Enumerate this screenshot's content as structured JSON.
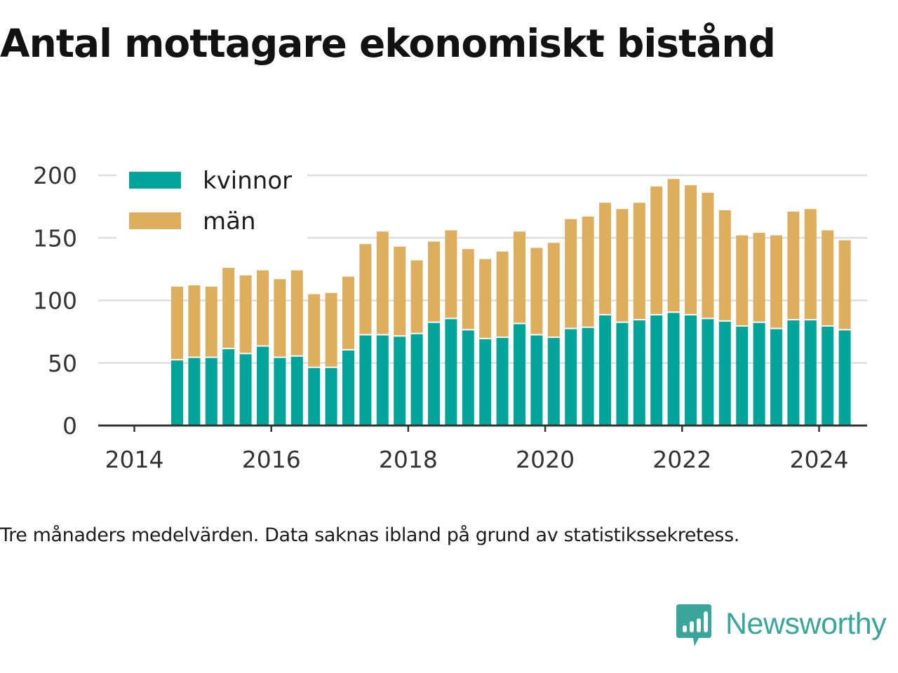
{
  "title": "Antal mottagare ekonomiskt bistånd",
  "note": "Tre månaders medelvärden. Data saknas ibland på grund av statistikssekretess.",
  "brand": {
    "name": "Newsworthy",
    "icon": "newsworthy-logo-icon",
    "color": "#3aa59a"
  },
  "colors": {
    "kvinnor": "#00a499",
    "man": "#dcae5e",
    "grid": "#dddddd",
    "axis": "#333333"
  },
  "chart_data": {
    "type": "bar",
    "stacked": true,
    "xlabel": "",
    "ylabel": "",
    "ylim": [
      0,
      200
    ],
    "yticks": [
      0,
      50,
      100,
      150,
      200
    ],
    "xticks": [
      "2014",
      "2016",
      "2018",
      "2020",
      "2022",
      "2024"
    ],
    "grid": true,
    "legend_position": "top-left",
    "categories": [
      "2014-Q2",
      "2014-Q3",
      "2014-Q4",
      "2015-Q1",
      "2015-Q2",
      "2015-Q3",
      "2015-Q4",
      "2016-Q1",
      "2016-Q2",
      "2016-Q3",
      "2016-Q4",
      "2017-Q1",
      "2017-Q2",
      "2017-Q3",
      "2017-Q4",
      "2018-Q1",
      "2018-Q2",
      "2018-Q3",
      "2018-Q4",
      "2019-Q1",
      "2019-Q2",
      "2019-Q3",
      "2019-Q4",
      "2020-Q1",
      "2020-Q2",
      "2020-Q3",
      "2020-Q4",
      "2021-Q1",
      "2021-Q2",
      "2021-Q3",
      "2021-Q4",
      "2022-Q1",
      "2022-Q2",
      "2022-Q3",
      "2022-Q4",
      "2023-Q1",
      "2023-Q2",
      "2023-Q3",
      "2023-Q4",
      "2024-Q1"
    ],
    "series": [
      {
        "name": "kvinnor",
        "values": [
          52,
          54,
          54,
          61,
          57,
          63,
          54,
          55,
          46,
          46,
          60,
          72,
          72,
          71,
          73,
          82,
          85,
          76,
          69,
          70,
          81,
          72,
          70,
          77,
          78,
          88,
          82,
          84,
          88,
          90,
          88,
          85,
          83,
          79,
          82,
          77,
          84,
          84,
          79,
          76
        ]
      },
      {
        "name": "män",
        "values": [
          59,
          58,
          57,
          65,
          63,
          61,
          63,
          69,
          59,
          60,
          59,
          73,
          83,
          72,
          59,
          65,
          71,
          65,
          64,
          69,
          74,
          70,
          76,
          88,
          89,
          90,
          91,
          94,
          103,
          107,
          104,
          101,
          89,
          73,
          72,
          75,
          87,
          89,
          77,
          72
        ]
      }
    ]
  }
}
